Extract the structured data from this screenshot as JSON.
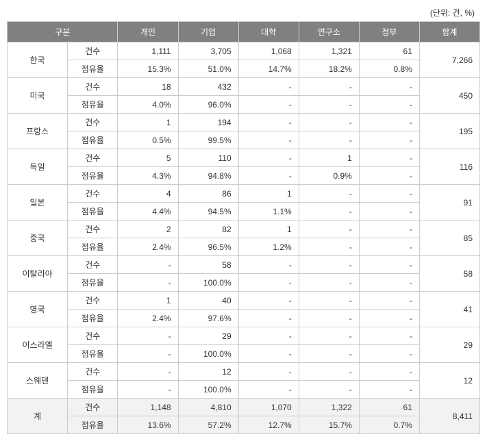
{
  "unit_label": "(단위: 건, %)",
  "headers": {
    "category": "구분",
    "individual": "개인",
    "company": "기업",
    "university": "대학",
    "institute": "연구소",
    "government": "정부",
    "total": "합계"
  },
  "metric_labels": {
    "count": "건수",
    "share": "점유율"
  },
  "rows": [
    {
      "country": "한국",
      "count": [
        "1,111",
        "3,705",
        "1,068",
        "1,321",
        "61"
      ],
      "share": [
        "15.3%",
        "51.0%",
        "14.7%",
        "18.2%",
        "0.8%"
      ],
      "total": "7,266"
    },
    {
      "country": "미국",
      "count": [
        "18",
        "432",
        "-",
        "-",
        "-"
      ],
      "share": [
        "4.0%",
        "96.0%",
        "-",
        "-",
        "-"
      ],
      "total": "450"
    },
    {
      "country": "프랑스",
      "count": [
        "1",
        "194",
        "-",
        "-",
        "-"
      ],
      "share": [
        "0.5%",
        "99.5%",
        "-",
        "-",
        "-"
      ],
      "total": "195"
    },
    {
      "country": "독일",
      "count": [
        "5",
        "110",
        "-",
        "1",
        "-"
      ],
      "share": [
        "4.3%",
        "94.8%",
        "-",
        "0.9%",
        "-"
      ],
      "total": "116"
    },
    {
      "country": "일본",
      "count": [
        "4",
        "86",
        "1",
        "-",
        "-"
      ],
      "share": [
        "4.4%",
        "94.5%",
        "1.1%",
        "-",
        "-"
      ],
      "total": "91"
    },
    {
      "country": "중국",
      "count": [
        "2",
        "82",
        "1",
        "-",
        "-"
      ],
      "share": [
        "2.4%",
        "96.5%",
        "1.2%",
        "-",
        "-"
      ],
      "total": "85"
    },
    {
      "country": "이탈리아",
      "count": [
        "-",
        "58",
        "-",
        "-",
        "-"
      ],
      "share": [
        "-",
        "100.0%",
        "-",
        "-",
        "-"
      ],
      "total": "58"
    },
    {
      "country": "영국",
      "count": [
        "1",
        "40",
        "-",
        "-",
        "-"
      ],
      "share": [
        "2.4%",
        "97.6%",
        "-",
        "-",
        "-"
      ],
      "total": "41"
    },
    {
      "country": "이스라엘",
      "count": [
        "-",
        "29",
        "-",
        "-",
        "-"
      ],
      "share": [
        "-",
        "100.0%",
        "-",
        "-",
        "-"
      ],
      "total": "29"
    },
    {
      "country": "스웨덴",
      "count": [
        "-",
        "12",
        "-",
        "-",
        "-"
      ],
      "share": [
        "-",
        "100.0%",
        "-",
        "-",
        "-"
      ],
      "total": "12"
    }
  ],
  "totals": {
    "country": "계",
    "count": [
      "1,148",
      "4,810",
      "1,070",
      "1,322",
      "61"
    ],
    "share": [
      "13.6%",
      "57.2%",
      "12.7%",
      "15.7%",
      "0.7%"
    ],
    "total": "8,411"
  },
  "colors": {
    "header_bg": "#808080",
    "header_text": "#ffffff",
    "border": "#cccccc",
    "text": "#333333",
    "totals_bg": "#f2f2f2",
    "background": "#ffffff"
  },
  "col_widths": {
    "country": "12%",
    "metric": "10%",
    "value": "12%",
    "total": "12%"
  }
}
